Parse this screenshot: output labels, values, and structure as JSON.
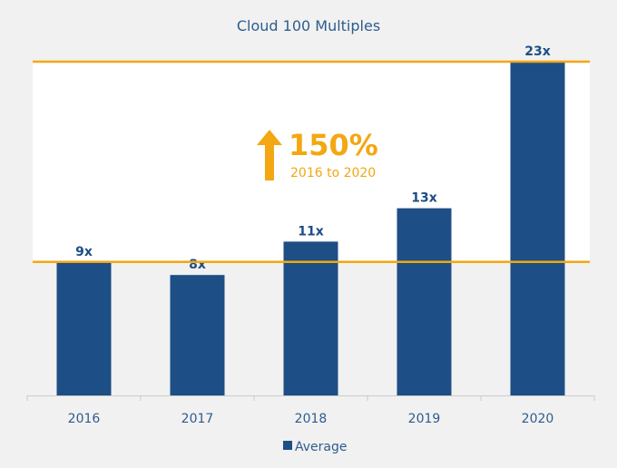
{
  "chart_data": {
    "type": "bar",
    "title": "Cloud 100 Multiples",
    "categories": [
      "2016",
      "2017",
      "2018",
      "2019",
      "2020"
    ],
    "series": [
      {
        "name": "Average",
        "values": [
          9.2,
          8.3,
          10.6,
          12.9,
          23.0
        ],
        "labels": [
          "9x",
          "8x",
          "11x",
          "13x",
          "23x"
        ],
        "color": "#1d4e85"
      }
    ],
    "xlabel": "",
    "ylabel": "",
    "ylim": [
      0,
      23
    ],
    "grid": false,
    "legend": "bottom-center",
    "annotation": {
      "headline": "150%",
      "subtext": "2016 to 2020",
      "icon": "arrow-up-icon",
      "color": "#f3a712",
      "band_from": 9.2,
      "band_to": 23.0
    }
  }
}
